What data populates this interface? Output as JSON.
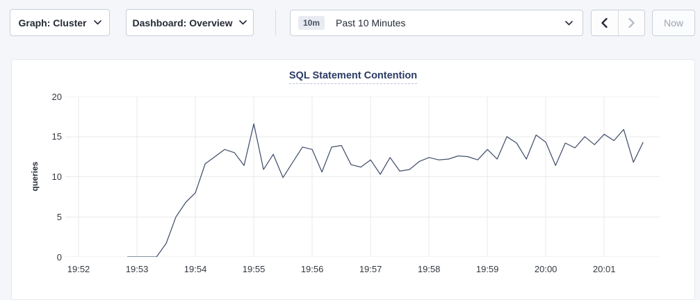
{
  "toolbar": {
    "graph_dropdown": {
      "label": "Graph: Cluster",
      "icon": "chevron-down-icon"
    },
    "dashboard_dropdown": {
      "label": "Dashboard: Overview",
      "icon": "chevron-down-icon"
    },
    "time_selector": {
      "badge": "10m",
      "label": "Past 10 Minutes",
      "icon": "chevron-down-icon"
    },
    "time_nav": {
      "back_icon": "chevron-left-icon",
      "forward_icon": "chevron-right-icon",
      "forward_disabled": true
    },
    "now_button": {
      "label": "Now",
      "disabled": true
    }
  },
  "colors": {
    "page_bg": "#f4f6fa",
    "panel_bg": "#ffffff",
    "panel_border": "#e4e9f0",
    "control_border": "#c9cfd9",
    "text_dark": "#242a35",
    "text_disabled": "#9aa4b4",
    "badge_bg": "#e8ebf1",
    "title": "#2a3a64",
    "title_underline": "#b9c3d2",
    "gridline": "#e9e9e9",
    "line": "#424f6b"
  },
  "chart_data": {
    "type": "line",
    "title": "SQL Statement Contention",
    "xlabel": "",
    "ylabel": "queries",
    "ylim": [
      0,
      20
    ],
    "y_ticks": [
      0,
      5,
      10,
      15,
      20
    ],
    "grid": true,
    "legend": false,
    "x_base_time": "19:52",
    "x_domain_seconds": [
      -13.6,
      597
    ],
    "x_ticks": [
      {
        "offset_sec": 0,
        "label": "19:52"
      },
      {
        "offset_sec": 60,
        "label": "19:53"
      },
      {
        "offset_sec": 120,
        "label": "19:54"
      },
      {
        "offset_sec": 180,
        "label": "19:55"
      },
      {
        "offset_sec": 240,
        "label": "19:56"
      },
      {
        "offset_sec": 300,
        "label": "19:57"
      },
      {
        "offset_sec": 360,
        "label": "19:58"
      },
      {
        "offset_sec": 420,
        "label": "19:59"
      },
      {
        "offset_sec": 480,
        "label": "20:00"
      },
      {
        "offset_sec": 540,
        "label": "20:01"
      }
    ],
    "series": [
      {
        "name": "queries",
        "color": "#424f6b",
        "start_offset_sec": 50,
        "interval_sec": 10,
        "values": [
          0,
          0,
          0,
          0,
          1.7,
          5,
          6.8,
          8,
          11.6,
          12.5,
          13.4,
          13,
          11.4,
          16.6,
          10.9,
          12.8,
          9.9,
          11.8,
          13.7,
          13.4,
          10.6,
          13.7,
          13.9,
          11.5,
          11.2,
          12.1,
          10.3,
          12.4,
          10.7,
          10.9,
          11.9,
          12.4,
          12.1,
          12.2,
          12.6,
          12.5,
          12.1,
          13.4,
          12.2,
          15,
          14.2,
          12.2,
          15.2,
          14.3,
          11.4,
          14.2,
          13.6,
          15,
          14,
          15.3,
          14.5,
          15.9,
          11.8,
          14.3
        ]
      }
    ]
  }
}
